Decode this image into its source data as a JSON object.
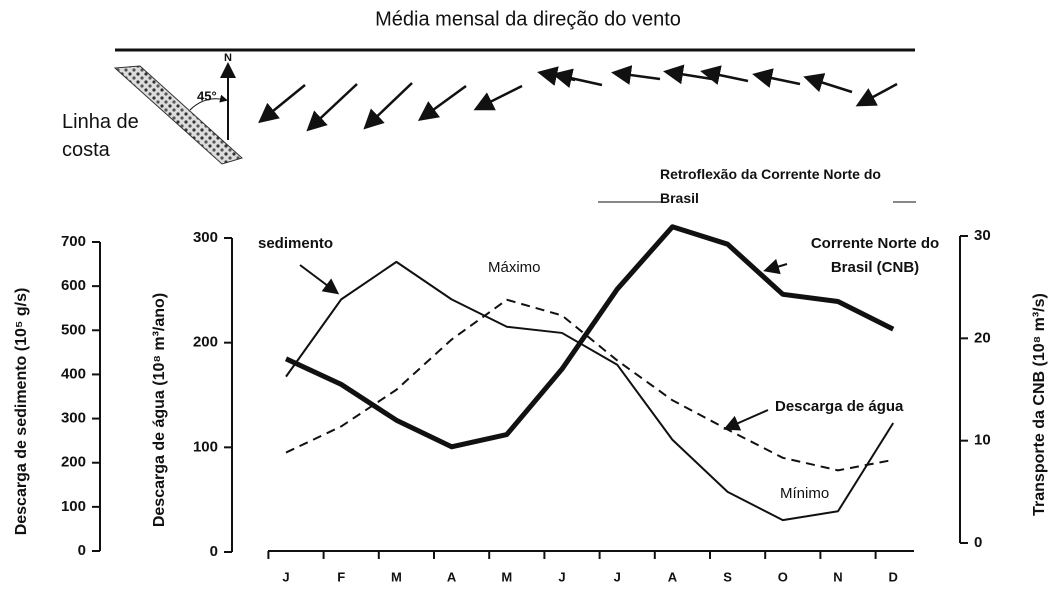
{
  "wind_panel": {
    "title": "Média mensal da direção do vento",
    "coast_label": "Linha de costa",
    "angle_label": "45°",
    "north_label": "N",
    "retroflection_label": "Retroflexão da Corrente Norte do Brasil"
  },
  "chart_data": {
    "type": "line",
    "categories": [
      "J",
      "F",
      "M",
      "A",
      "M",
      "J",
      "J",
      "A",
      "S",
      "O",
      "N",
      "D"
    ],
    "ylabel": "Descarga de sedimento (10⁵ g/s)",
    "ylim": [
      0,
      700
    ],
    "yticks": [
      0,
      100,
      200,
      300,
      400,
      500,
      600,
      700
    ],
    "y2label": "Descarga de água (10⁸ m³/ano)",
    "y2lim": [
      0,
      300
    ],
    "y2ticks": [
      0,
      100,
      200,
      300
    ],
    "y3label": "Transporte da CNB (10⁸ m³/s)",
    "y3lim": [
      0,
      30
    ],
    "y3ticks": [
      0,
      10,
      20,
      30
    ],
    "series": [
      {
        "name": "sedimento",
        "color": "#111111",
        "axis": "y",
        "values": [
          395,
          570,
          655,
          570,
          508,
          494,
          422,
          252,
          134,
          70,
          90,
          290
        ]
      },
      {
        "name": "Descarga de água",
        "color": "#111111",
        "axis": "y2",
        "values": [
          95,
          120,
          155,
          203,
          241,
          226,
          183,
          145,
          117,
          90,
          78,
          88
        ]
      },
      {
        "name": "Corrente Norte do Brasil (CNB)",
        "color": "#111111",
        "axis": "y3",
        "values": [
          18,
          15.5,
          12,
          9.4,
          10.6,
          17,
          24.8,
          30.9,
          29.2,
          24.3,
          23.6,
          20.9
        ]
      }
    ],
    "annotations": [
      "Máximo",
      "Mínimo"
    ]
  }
}
